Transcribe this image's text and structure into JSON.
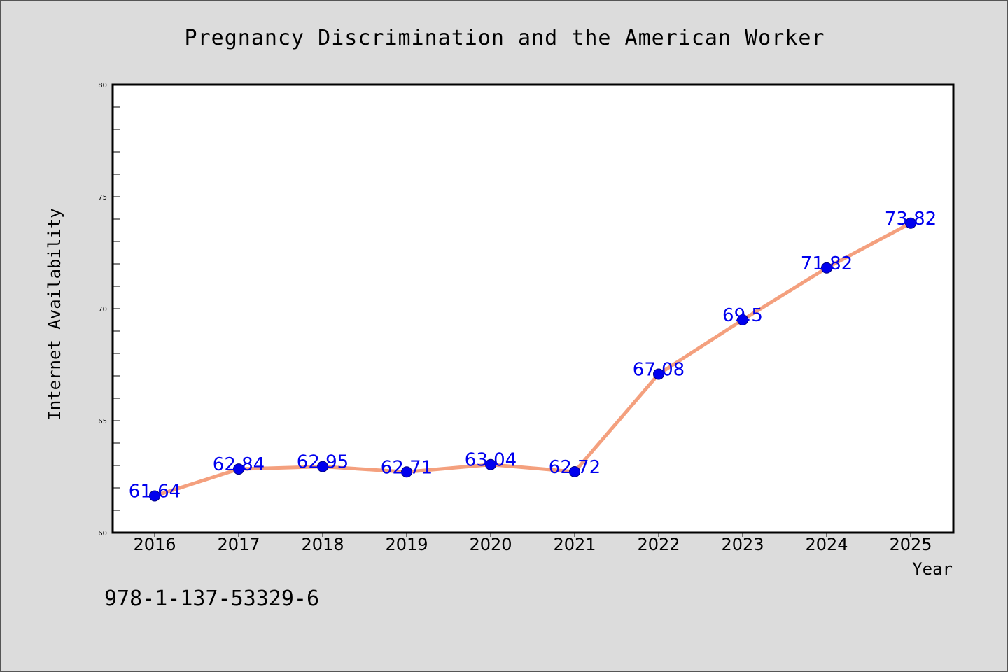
{
  "chart_data": {
    "type": "line",
    "title": "Pregnancy Discrimination and the American Worker",
    "xlabel": "Year",
    "ylabel": "Internet Availability",
    "categories": [
      "2016",
      "2017",
      "2018",
      "2019",
      "2020",
      "2021",
      "2022",
      "2023",
      "2024",
      "2025"
    ],
    "series": [
      {
        "values": [
          61.64,
          62.84,
          62.95,
          62.71,
          63.04,
          62.72,
          67.08,
          69.5,
          71.82,
          73.82
        ],
        "labels": [
          "61.64",
          "62.84",
          "62.95",
          "62.71",
          "63.04",
          "62.72",
          "67.08",
          "69.5",
          "71.82",
          "73.82"
        ]
      }
    ],
    "ylim": [
      60,
      80
    ],
    "yticks": [
      "60",
      "65",
      "70",
      "75",
      "80"
    ],
    "grid": false,
    "colors": {
      "line": "#f4a07e",
      "marker": "#0000ee",
      "marker_edge": "#000080",
      "data_label": "#0000ee",
      "plot_background": "#ffffff",
      "figure_background": "#dcdcdc"
    }
  },
  "footer": {
    "isbn": "978-1-137-53329-6"
  }
}
